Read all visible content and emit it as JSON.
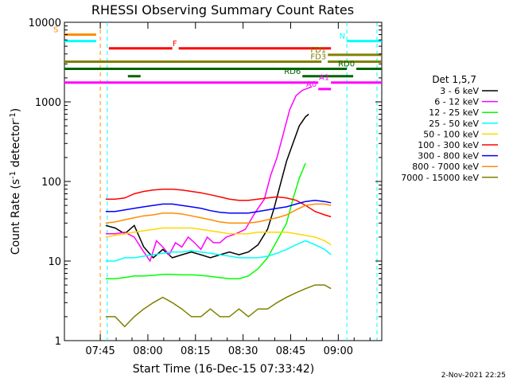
{
  "chart_data": {
    "type": "line",
    "title": "RHESSI Observing Summary Count Rates",
    "ylabel_main": "Count Rate (s",
    "ylabel_sup1": "-1",
    "ylabel_mid": " detector",
    "ylabel_sup2": "-1",
    "ylabel_end": ")",
    "xlabel": "Start Time (16-Dec-15 07:33:42)",
    "footer": "2-Nov-2021 22:25",
    "yscale": "log",
    "ylim": [
      1,
      10000
    ],
    "xlim_minutes": [
      0,
      100
    ],
    "xticks": [
      {
        "label": "07:45",
        "value": 11.3
      },
      {
        "label": "08:00",
        "value": 26.3
      },
      {
        "label": "08:15",
        "value": 41.3
      },
      {
        "label": "08:30",
        "value": 56.3
      },
      {
        "label": "08:45",
        "value": 71.3
      },
      {
        "label": "09:00",
        "value": 86.3
      }
    ],
    "yticks": [
      {
        "label": "1",
        "value": 1
      },
      {
        "label": "10",
        "value": 10
      },
      {
        "label": "100",
        "value": 100
      },
      {
        "label": "1000",
        "value": 1000
      },
      {
        "label": "10000",
        "value": 10000
      }
    ],
    "legend_title": "Det 1,5,7",
    "legend_position": "right",
    "series": [
      {
        "name": "3 - 6 keV",
        "color": "#000000",
        "points": [
          [
            13,
            28
          ],
          [
            16,
            26
          ],
          [
            19,
            22
          ],
          [
            22,
            28
          ],
          [
            25,
            15
          ],
          [
            28,
            11
          ],
          [
            31,
            14
          ],
          [
            34,
            11
          ],
          [
            37,
            12
          ],
          [
            40,
            13
          ],
          [
            43,
            12
          ],
          [
            46,
            11
          ],
          [
            49,
            12
          ],
          [
            52,
            13
          ],
          [
            55,
            12
          ],
          [
            58,
            13
          ],
          [
            61,
            16
          ],
          [
            64,
            25
          ],
          [
            66,
            45
          ],
          [
            68,
            90
          ],
          [
            70,
            180
          ],
          [
            72,
            300
          ],
          [
            74,
            500
          ],
          [
            76,
            650
          ],
          [
            77,
            700
          ]
        ]
      },
      {
        "name": "6 - 12 keV",
        "color": "#ff00ff",
        "points": [
          [
            13,
            22
          ],
          [
            16,
            22
          ],
          [
            19,
            23
          ],
          [
            22,
            20
          ],
          [
            25,
            13
          ],
          [
            27,
            10
          ],
          [
            29,
            18
          ],
          [
            31,
            15
          ],
          [
            33,
            12
          ],
          [
            35,
            17
          ],
          [
            37,
            15
          ],
          [
            39,
            20
          ],
          [
            41,
            17
          ],
          [
            43,
            14
          ],
          [
            45,
            20
          ],
          [
            47,
            17
          ],
          [
            49,
            17
          ],
          [
            51,
            20
          ],
          [
            54,
            22
          ],
          [
            57,
            25
          ],
          [
            60,
            40
          ],
          [
            63,
            60
          ],
          [
            65,
            120
          ],
          [
            67,
            200
          ],
          [
            69,
            400
          ],
          [
            71,
            800
          ],
          [
            73,
            1200
          ],
          [
            75,
            1400
          ],
          [
            77,
            1500
          ],
          [
            78,
            1550
          ]
        ]
      },
      {
        "name": "12 - 25 keV",
        "color": "#00ff00",
        "points": [
          [
            13,
            6
          ],
          [
            16,
            6
          ],
          [
            19,
            6.2
          ],
          [
            22,
            6.5
          ],
          [
            25,
            6.5
          ],
          [
            28,
            6.6
          ],
          [
            31,
            6.8
          ],
          [
            34,
            6.8
          ],
          [
            37,
            6.7
          ],
          [
            40,
            6.7
          ],
          [
            43,
            6.6
          ],
          [
            46,
            6.4
          ],
          [
            49,
            6.2
          ],
          [
            52,
            6
          ],
          [
            55,
            6
          ],
          [
            58,
            6.5
          ],
          [
            61,
            8
          ],
          [
            64,
            11
          ],
          [
            67,
            18
          ],
          [
            70,
            30
          ],
          [
            72,
            60
          ],
          [
            74,
            110
          ],
          [
            76,
            170
          ]
        ]
      },
      {
        "name": "25 - 50 keV",
        "color": "#00ffff",
        "points": [
          [
            13,
            10
          ],
          [
            16,
            10
          ],
          [
            19,
            11
          ],
          [
            22,
            11
          ],
          [
            25,
            11.5
          ],
          [
            28,
            12
          ],
          [
            31,
            12.5
          ],
          [
            34,
            13
          ],
          [
            37,
            13
          ],
          [
            40,
            13.5
          ],
          [
            43,
            13
          ],
          [
            46,
            12.5
          ],
          [
            49,
            12
          ],
          [
            52,
            11.5
          ],
          [
            55,
            11
          ],
          [
            58,
            11
          ],
          [
            61,
            11
          ],
          [
            64,
            11.5
          ],
          [
            67,
            12.5
          ],
          [
            70,
            14
          ],
          [
            73,
            16
          ],
          [
            76,
            18
          ],
          [
            79,
            16
          ],
          [
            82,
            14
          ],
          [
            84,
            12
          ]
        ]
      },
      {
        "name": "50 - 100 keV",
        "color": "#ffd700",
        "points": [
          [
            13,
            20
          ],
          [
            16,
            21
          ],
          [
            19,
            22
          ],
          [
            22,
            23
          ],
          [
            25,
            24
          ],
          [
            28,
            25
          ],
          [
            31,
            26
          ],
          [
            34,
            26
          ],
          [
            37,
            26
          ],
          [
            40,
            26
          ],
          [
            43,
            25
          ],
          [
            46,
            24
          ],
          [
            49,
            23
          ],
          [
            52,
            22
          ],
          [
            55,
            22
          ],
          [
            58,
            22
          ],
          [
            61,
            23
          ],
          [
            64,
            23
          ],
          [
            67,
            23
          ],
          [
            70,
            23
          ],
          [
            73,
            22
          ],
          [
            76,
            21
          ],
          [
            79,
            20
          ],
          [
            82,
            18
          ],
          [
            84,
            16
          ]
        ]
      },
      {
        "name": "100 - 300 keV",
        "color": "#ff0000",
        "points": [
          [
            13,
            60
          ],
          [
            16,
            60
          ],
          [
            19,
            62
          ],
          [
            22,
            70
          ],
          [
            25,
            75
          ],
          [
            28,
            78
          ],
          [
            31,
            80
          ],
          [
            34,
            80
          ],
          [
            37,
            78
          ],
          [
            40,
            75
          ],
          [
            43,
            72
          ],
          [
            46,
            68
          ],
          [
            49,
            64
          ],
          [
            52,
            60
          ],
          [
            55,
            58
          ],
          [
            58,
            58
          ],
          [
            61,
            60
          ],
          [
            64,
            62
          ],
          [
            67,
            64
          ],
          [
            70,
            62
          ],
          [
            73,
            58
          ],
          [
            76,
            50
          ],
          [
            79,
            42
          ],
          [
            82,
            38
          ],
          [
            84,
            36
          ]
        ]
      },
      {
        "name": "300 - 800 keV",
        "color": "#0000ff",
        "points": [
          [
            13,
            42
          ],
          [
            16,
            42
          ],
          [
            19,
            44
          ],
          [
            22,
            46
          ],
          [
            25,
            48
          ],
          [
            28,
            50
          ],
          [
            31,
            52
          ],
          [
            34,
            52
          ],
          [
            37,
            50
          ],
          [
            40,
            48
          ],
          [
            43,
            46
          ],
          [
            46,
            43
          ],
          [
            49,
            41
          ],
          [
            52,
            40
          ],
          [
            55,
            40
          ],
          [
            58,
            40
          ],
          [
            61,
            42
          ],
          [
            64,
            44
          ],
          [
            67,
            46
          ],
          [
            70,
            48
          ],
          [
            73,
            52
          ],
          [
            76,
            56
          ],
          [
            79,
            58
          ],
          [
            82,
            56
          ],
          [
            84,
            54
          ]
        ]
      },
      {
        "name": "800 - 7000 keV",
        "color": "#ff8c00",
        "points": [
          [
            13,
            30
          ],
          [
            16,
            31
          ],
          [
            19,
            33
          ],
          [
            22,
            35
          ],
          [
            25,
            37
          ],
          [
            28,
            38
          ],
          [
            31,
            40
          ],
          [
            34,
            40
          ],
          [
            37,
            39
          ],
          [
            40,
            37
          ],
          [
            43,
            35
          ],
          [
            46,
            33
          ],
          [
            49,
            31
          ],
          [
            52,
            30
          ],
          [
            55,
            30
          ],
          [
            58,
            30
          ],
          [
            61,
            31
          ],
          [
            64,
            33
          ],
          [
            67,
            35
          ],
          [
            70,
            38
          ],
          [
            73,
            44
          ],
          [
            76,
            50
          ],
          [
            79,
            52
          ],
          [
            82,
            52
          ],
          [
            84,
            50
          ]
        ]
      },
      {
        "name": "7000 - 15000 keV",
        "color": "#808000",
        "points": [
          [
            13,
            2
          ],
          [
            16,
            2
          ],
          [
            19,
            1.5
          ],
          [
            22,
            2
          ],
          [
            25,
            2.5
          ],
          [
            28,
            3
          ],
          [
            31,
            3.5
          ],
          [
            34,
            3
          ],
          [
            37,
            2.5
          ],
          [
            40,
            2
          ],
          [
            43,
            2
          ],
          [
            46,
            2.5
          ],
          [
            49,
            2
          ],
          [
            52,
            2
          ],
          [
            55,
            2.5
          ],
          [
            58,
            2
          ],
          [
            61,
            2.5
          ],
          [
            64,
            2.5
          ],
          [
            67,
            3
          ],
          [
            70,
            3.5
          ],
          [
            73,
            4
          ],
          [
            76,
            4.5
          ],
          [
            79,
            5
          ],
          [
            82,
            5
          ],
          [
            84,
            4.5
          ]
        ]
      }
    ],
    "flags": [
      {
        "name": "S",
        "color": "#ff8c00",
        "segments": [
          [
            0,
            10
          ]
        ],
        "level": 7000
      },
      {
        "name": "N",
        "color": "#00ffff",
        "segments": [
          [
            0,
            10
          ],
          [
            89,
            100
          ]
        ],
        "level": 5800
      },
      {
        "name": "F",
        "color": "#ff0000",
        "segments": [
          [
            14,
            34
          ],
          [
            36,
            84
          ]
        ],
        "level": 4700
      },
      {
        "name": "FD1",
        "color": "#808000",
        "segments": [
          [
            83,
            100
          ]
        ],
        "level": 3900
      },
      {
        "name": "FD3",
        "color": "#808000",
        "segments": [
          [
            0,
            81
          ],
          [
            83,
            100
          ]
        ],
        "level": 3200
      },
      {
        "name": "RD0",
        "color": "#006400",
        "segments": [
          [
            0,
            89
          ],
          [
            92,
            100
          ]
        ],
        "level": 2600
      },
      {
        "name": "RD6",
        "color": "#006400",
        "segments": [
          [
            20,
            24
          ],
          [
            75,
            91
          ]
        ],
        "level": 2100
      },
      {
        "name": "A1",
        "color": "#ff00ff",
        "segments": [
          [
            0,
            80
          ],
          [
            84,
            100
          ]
        ],
        "level": 1750
      },
      {
        "name": "A0",
        "color": "#ff00ff",
        "segments": [
          [
            80,
            84
          ]
        ],
        "level": 1450
      }
    ],
    "vlines": [
      {
        "value": 11.3,
        "color": "#ff8c00"
      },
      {
        "value": 13.5,
        "color": "#00ffff"
      },
      {
        "value": 89.0,
        "color": "#00ffff"
      },
      {
        "value": 98.5,
        "color": "#00ffff"
      }
    ]
  }
}
